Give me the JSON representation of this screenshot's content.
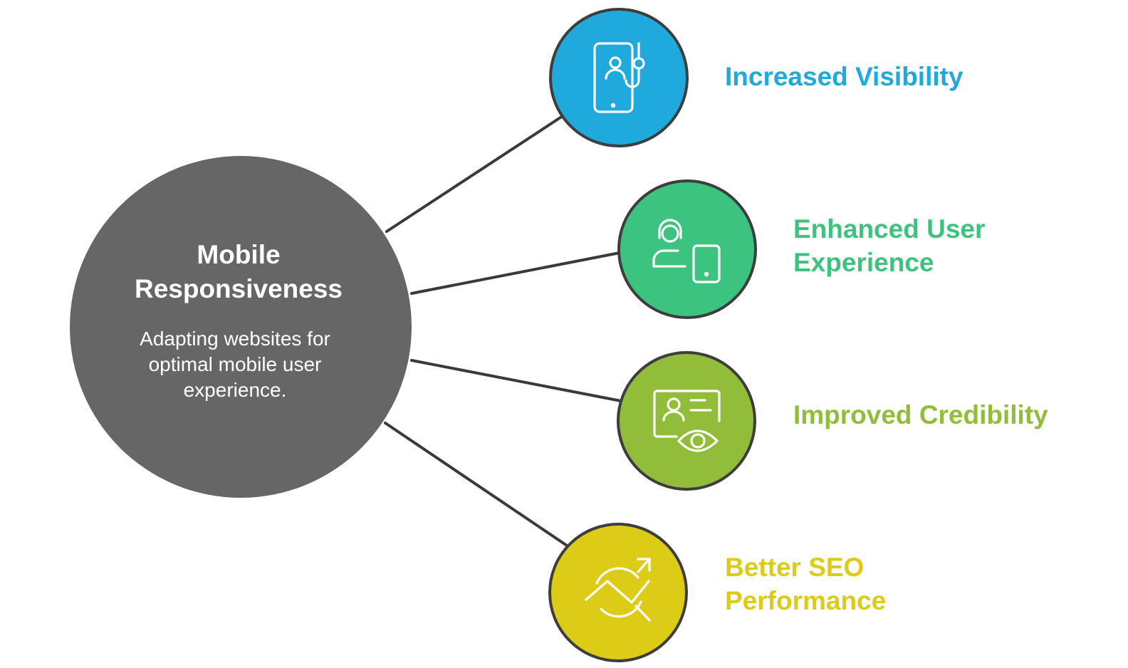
{
  "hub": {
    "title_line1": "Mobile",
    "title_line2": "Responsiveness",
    "desc_line1": "Adapting websites for",
    "desc_line2": "optimal mobile user",
    "desc_line3": "experience.",
    "color": "#666666"
  },
  "branches": [
    {
      "line1": "Increased Visibility",
      "line2": "",
      "color": "#1fa9dc",
      "icon": "smartphone-user-pin-icon"
    },
    {
      "line1": "Enhanced User",
      "line2": "Experience",
      "color": "#3cc37f",
      "icon": "user-with-tablet-icon"
    },
    {
      "line1": "Improved Credibility",
      "line2": "",
      "color": "#92bd3a",
      "icon": "id-card-eye-icon"
    },
    {
      "line1": "Better SEO",
      "line2": "Performance",
      "color": "#dccb17",
      "icon": "trend-magnifier-icon"
    }
  ]
}
